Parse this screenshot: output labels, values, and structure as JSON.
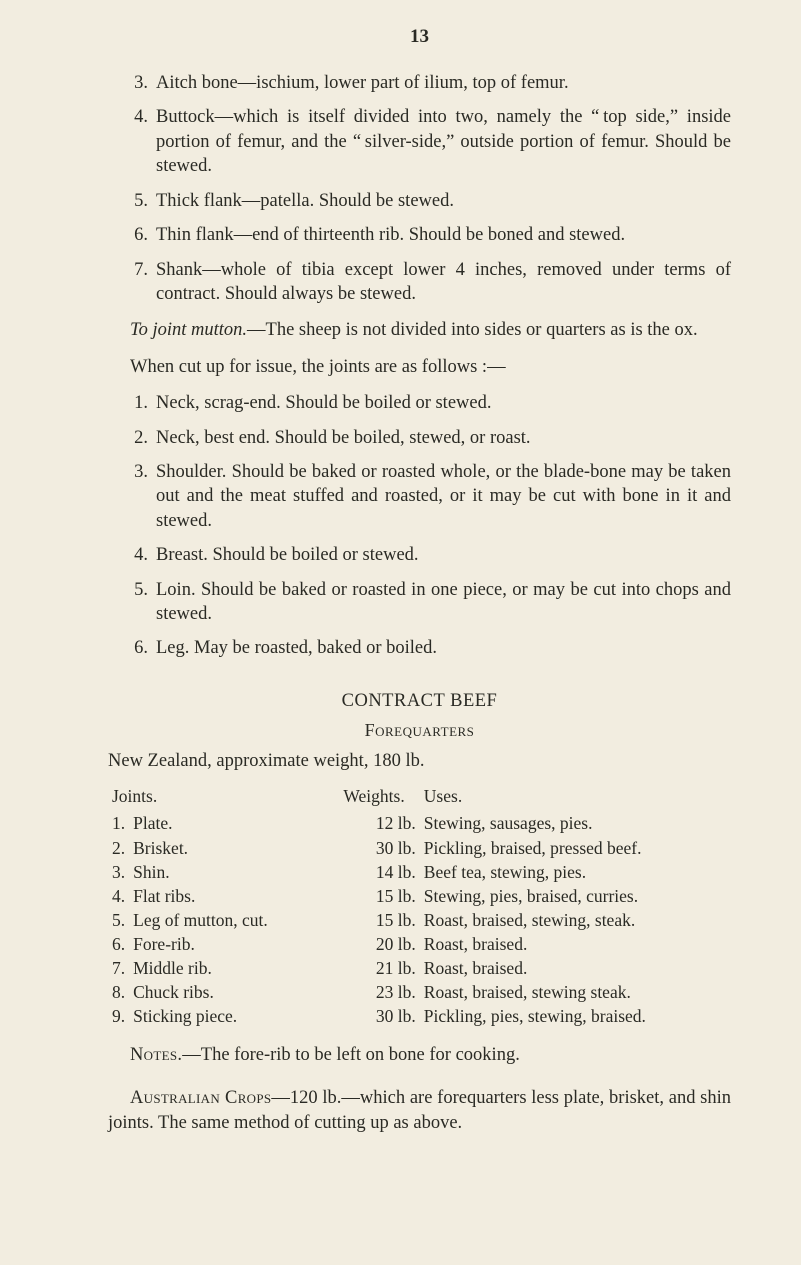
{
  "page_number": "13",
  "colors": {
    "background": "#f2ede0",
    "text": "#2a2a24"
  },
  "typography": {
    "body_size_pt": 14,
    "title_size_pt": 14,
    "line_height": 1.32
  },
  "upper_list": [
    {
      "num": "3.",
      "text": "Aitch bone—ischium, lower part of ilium, top of femur."
    },
    {
      "num": "4.",
      "text": "Buttock—which is itself divided into two, namely the “ top side,” inside portion of femur, and the “ silver-side,” outside portion of femur.  Should be stewed."
    },
    {
      "num": "5.",
      "text": "Thick flank—patella.  Should be stewed."
    },
    {
      "num": "6.",
      "text": "Thin flank—end of thirteenth rib.  Should be boned and stewed."
    },
    {
      "num": "7.",
      "text": "Shank—whole of tibia except lower 4 inches, removed under terms of contract.  Should always be stewed."
    }
  ],
  "joint_mutton_lead": "To joint mutton.",
  "joint_mutton_rest": "—The sheep is not divided into sides or quarters as is the ox.",
  "when_cut_up": "When cut up for issue, the joints are as follows :—",
  "lower_list": [
    {
      "num": "1.",
      "text": "Neck, scrag-end.  Should be boiled or stewed."
    },
    {
      "num": "2.",
      "text": "Neck, best end.  Should be boiled, stewed, or roast."
    },
    {
      "num": "3.",
      "text": "Shoulder.  Should be baked or roasted whole, or the blade-bone may be taken out and the meat stuffed and roasted, or it may be cut with bone in it and stewed."
    },
    {
      "num": "4.",
      "text": "Breast.  Should be boiled or stewed."
    },
    {
      "num": "5.",
      "text": "Loin.  Should be baked or roasted in one piece, or may be cut into chops and stewed."
    },
    {
      "num": "6.",
      "text": "Leg.  May be roasted, baked or boiled."
    }
  ],
  "contract_beef_title": "CONTRACT BEEF",
  "forequarters_title": "Forequarters",
  "nz_weight_line": "New Zealand, approximate weight, 180 lb.",
  "table": {
    "headers": {
      "joints": "Joints.",
      "weights": "Weights.",
      "uses": "Uses."
    },
    "rows": [
      {
        "n": "1.",
        "joint": "Plate.",
        "weight": "12 lb.",
        "use": "Stewing, sausages, pies."
      },
      {
        "n": "2.",
        "joint": "Brisket.",
        "weight": "30 lb.",
        "use": "Pickling, braised, pressed beef."
      },
      {
        "n": "3.",
        "joint": "Shin.",
        "weight": "14 lb.",
        "use": "Beef tea, stewing, pies."
      },
      {
        "n": "4.",
        "joint": "Flat ribs.",
        "weight": "15 lb.",
        "use": "Stewing, pies, braised, curries."
      },
      {
        "n": "5.",
        "joint": "Leg of mutton, cut.",
        "weight": "15 lb.",
        "use": "Roast, braised, stewing, steak."
      },
      {
        "n": "6.",
        "joint": "Fore-rib.",
        "weight": "20 lb.",
        "use": "Roast, braised."
      },
      {
        "n": "7.",
        "joint": "Middle rib.",
        "weight": "21 lb.",
        "use": "Roast, braised."
      },
      {
        "n": "8.",
        "joint": "Chuck ribs.",
        "weight": "23 lb.",
        "use": "Roast, braised, stewing steak."
      },
      {
        "n": "9.",
        "joint": "Sticking piece.",
        "weight": "30 lb.",
        "use": "Pickling, pies, stewing, braised."
      }
    ]
  },
  "notes_lead": "Notes.",
  "notes_rest": "—The fore-rib to be left on bone for cooking.",
  "aus_lead": "Australian Crops",
  "aus_rest": "—120 lb.—which are forequarters less plate, brisket, and shin joints.  The same method of cutting up as above."
}
